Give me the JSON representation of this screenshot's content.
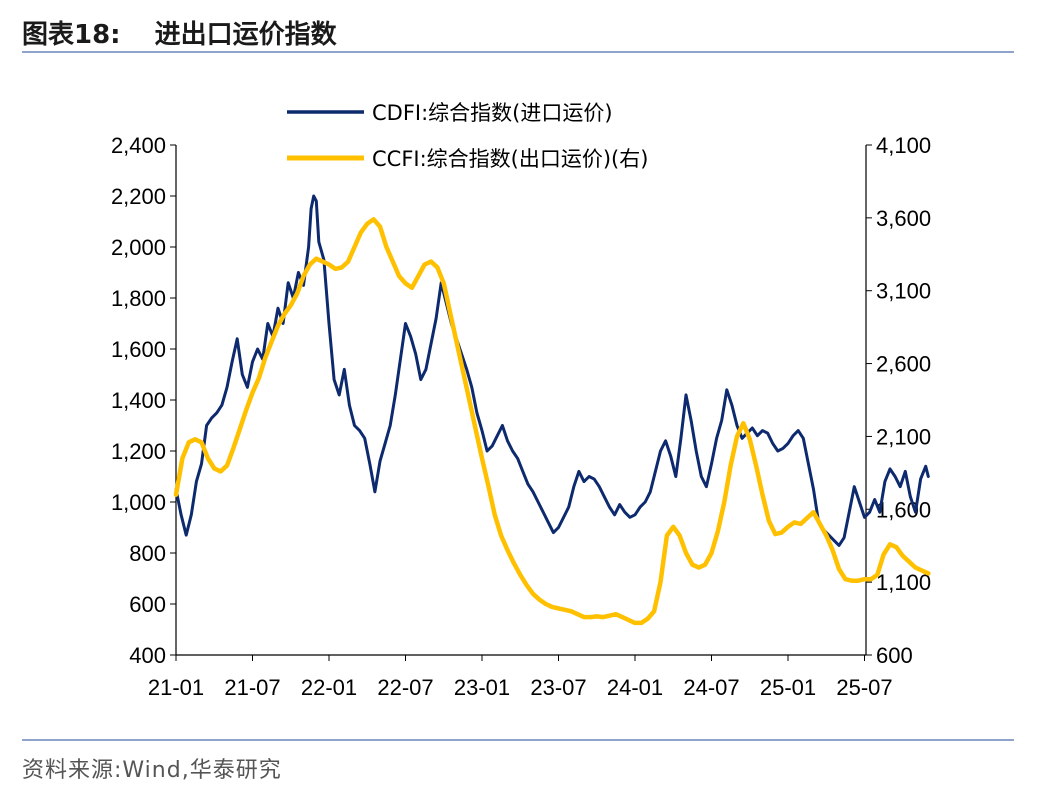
{
  "header": {
    "figure_label": "图表18:",
    "title": "进出口运价指数"
  },
  "footer": {
    "source": "资料来源:Wind,华泰研究"
  },
  "colors": {
    "import": "#0d2a6e",
    "export": "#ffc000",
    "rule": "#8ea4c8"
  },
  "chart_data": {
    "type": "line",
    "title": "进出口运价指数",
    "x_tick_labels": [
      "21-01",
      "21-07",
      "22-01",
      "22-07",
      "23-01",
      "23-07",
      "24-01",
      "24-07",
      "25-01",
      "25-07"
    ],
    "x_range_months": [
      0,
      55
    ],
    "y_left": {
      "min": 400,
      "max": 2400,
      "ticks": [
        400,
        600,
        800,
        1000,
        1200,
        1400,
        1600,
        1800,
        2000,
        2200,
        2400
      ],
      "tick_labels": [
        "400",
        "600",
        "800",
        "1,000",
        "1,200",
        "1,400",
        "1,600",
        "1,800",
        "2,000",
        "2,200",
        "2,400"
      ]
    },
    "y_right": {
      "min": 600,
      "max": 4100,
      "ticks": [
        600,
        1100,
        1600,
        2100,
        2600,
        3100,
        3600,
        4100
      ],
      "tick_labels": [
        "600",
        "1,100",
        "1,600",
        "2,100",
        "2,600",
        "3,100",
        "3,600",
        "4,100"
      ]
    },
    "legend_position": "top-center",
    "series": [
      {
        "name": "CDFI:综合指数(进口运价)",
        "axis": "left",
        "color": "#0d2a6e",
        "points": [
          [
            0,
            1050
          ],
          [
            0.4,
            950
          ],
          [
            0.8,
            870
          ],
          [
            1.2,
            950
          ],
          [
            1.6,
            1080
          ],
          [
            2,
            1150
          ],
          [
            2.4,
            1300
          ],
          [
            2.8,
            1330
          ],
          [
            3.2,
            1350
          ],
          [
            3.6,
            1380
          ],
          [
            4,
            1450
          ],
          [
            4.4,
            1550
          ],
          [
            4.8,
            1640
          ],
          [
            5.2,
            1500
          ],
          [
            5.6,
            1450
          ],
          [
            6,
            1550
          ],
          [
            6.4,
            1600
          ],
          [
            6.8,
            1560
          ],
          [
            7.2,
            1700
          ],
          [
            7.6,
            1650
          ],
          [
            8,
            1760
          ],
          [
            8.4,
            1700
          ],
          [
            8.8,
            1860
          ],
          [
            9.2,
            1800
          ],
          [
            9.6,
            1900
          ],
          [
            10,
            1850
          ],
          [
            10.4,
            2000
          ],
          [
            10.6,
            2150
          ],
          [
            10.8,
            2200
          ],
          [
            11,
            2180
          ],
          [
            11.2,
            2020
          ],
          [
            11.6,
            1950
          ],
          [
            12,
            1700
          ],
          [
            12.4,
            1480
          ],
          [
            12.8,
            1420
          ],
          [
            13.2,
            1520
          ],
          [
            13.6,
            1380
          ],
          [
            14,
            1300
          ],
          [
            14.4,
            1280
          ],
          [
            14.8,
            1250
          ],
          [
            15.2,
            1150
          ],
          [
            15.6,
            1040
          ],
          [
            16,
            1160
          ],
          [
            16.4,
            1230
          ],
          [
            16.8,
            1300
          ],
          [
            17.2,
            1420
          ],
          [
            17.6,
            1560
          ],
          [
            18,
            1700
          ],
          [
            18.4,
            1650
          ],
          [
            18.8,
            1580
          ],
          [
            19.2,
            1480
          ],
          [
            19.6,
            1520
          ],
          [
            20,
            1620
          ],
          [
            20.4,
            1720
          ],
          [
            20.8,
            1860
          ],
          [
            21.2,
            1780
          ],
          [
            21.6,
            1700
          ],
          [
            22,
            1640
          ],
          [
            22.4,
            1580
          ],
          [
            22.8,
            1520
          ],
          [
            23.2,
            1450
          ],
          [
            23.6,
            1350
          ],
          [
            24,
            1280
          ],
          [
            24.4,
            1200
          ],
          [
            24.8,
            1220
          ],
          [
            25.2,
            1260
          ],
          [
            25.6,
            1300
          ],
          [
            26,
            1240
          ],
          [
            26.4,
            1200
          ],
          [
            26.8,
            1170
          ],
          [
            27.2,
            1120
          ],
          [
            27.6,
            1070
          ],
          [
            28,
            1040
          ],
          [
            28.4,
            1000
          ],
          [
            28.8,
            960
          ],
          [
            29.2,
            920
          ],
          [
            29.6,
            880
          ],
          [
            30,
            900
          ],
          [
            30.4,
            940
          ],
          [
            30.8,
            980
          ],
          [
            31.2,
            1060
          ],
          [
            31.6,
            1120
          ],
          [
            32,
            1080
          ],
          [
            32.4,
            1100
          ],
          [
            32.8,
            1090
          ],
          [
            33.2,
            1060
          ],
          [
            33.6,
            1020
          ],
          [
            34,
            980
          ],
          [
            34.4,
            950
          ],
          [
            34.8,
            990
          ],
          [
            35.2,
            960
          ],
          [
            35.6,
            940
          ],
          [
            36,
            950
          ],
          [
            36.4,
            980
          ],
          [
            36.8,
            1000
          ],
          [
            37.2,
            1040
          ],
          [
            37.6,
            1120
          ],
          [
            38,
            1200
          ],
          [
            38.4,
            1240
          ],
          [
            38.8,
            1180
          ],
          [
            39.2,
            1100
          ],
          [
            39.6,
            1250
          ],
          [
            40,
            1420
          ],
          [
            40.4,
            1320
          ],
          [
            40.8,
            1200
          ],
          [
            41.2,
            1100
          ],
          [
            41.6,
            1060
          ],
          [
            42,
            1150
          ],
          [
            42.4,
            1250
          ],
          [
            42.8,
            1320
          ],
          [
            43.2,
            1440
          ],
          [
            43.6,
            1380
          ],
          [
            44,
            1300
          ],
          [
            44.4,
            1250
          ],
          [
            44.8,
            1270
          ],
          [
            45.2,
            1290
          ],
          [
            45.6,
            1260
          ],
          [
            46,
            1280
          ],
          [
            46.4,
            1270
          ],
          [
            46.8,
            1230
          ],
          [
            47.2,
            1200
          ],
          [
            47.6,
            1210
          ],
          [
            48,
            1230
          ],
          [
            48.4,
            1260
          ],
          [
            48.8,
            1280
          ],
          [
            49.2,
            1250
          ],
          [
            49.6,
            1150
          ],
          [
            50,
            1050
          ],
          [
            50.4,
            920
          ],
          [
            50.8,
            890
          ],
          [
            51.2,
            870
          ],
          [
            51.6,
            850
          ],
          [
            52,
            830
          ],
          [
            52.4,
            860
          ],
          [
            52.8,
            960
          ],
          [
            53.2,
            1060
          ],
          [
            53.6,
            1000
          ],
          [
            54,
            940
          ],
          [
            54.4,
            960
          ],
          [
            54.8,
            1010
          ],
          [
            55.2,
            960
          ],
          [
            55.6,
            1080
          ],
          [
            56,
            1130
          ],
          [
            56.4,
            1100
          ],
          [
            56.8,
            1060
          ],
          [
            57.2,
            1120
          ],
          [
            57.6,
            1020
          ],
          [
            58,
            960
          ],
          [
            58.4,
            1090
          ],
          [
            58.8,
            1140
          ],
          [
            59,
            1100
          ]
        ]
      },
      {
        "name": "CCFI:综合指数(出口运价)(右)",
        "axis": "right",
        "color": "#ffc000",
        "points": [
          [
            0,
            1700
          ],
          [
            0.5,
            1950
          ],
          [
            1,
            2060
          ],
          [
            1.5,
            2080
          ],
          [
            2,
            2060
          ],
          [
            2.5,
            1950
          ],
          [
            3,
            1880
          ],
          [
            3.5,
            1860
          ],
          [
            4,
            1900
          ],
          [
            4.5,
            2020
          ],
          [
            5,
            2150
          ],
          [
            5.5,
            2280
          ],
          [
            6,
            2400
          ],
          [
            6.5,
            2500
          ],
          [
            7,
            2640
          ],
          [
            7.5,
            2750
          ],
          [
            8,
            2860
          ],
          [
            8.5,
            2940
          ],
          [
            9,
            3000
          ],
          [
            9.5,
            3080
          ],
          [
            10,
            3200
          ],
          [
            10.5,
            3280
          ],
          [
            11,
            3320
          ],
          [
            11.5,
            3300
          ],
          [
            12,
            3280
          ],
          [
            12.5,
            3250
          ],
          [
            13,
            3260
          ],
          [
            13.5,
            3300
          ],
          [
            14,
            3400
          ],
          [
            14.5,
            3500
          ],
          [
            15,
            3560
          ],
          [
            15.5,
            3590
          ],
          [
            16,
            3540
          ],
          [
            16.5,
            3400
          ],
          [
            17,
            3300
          ],
          [
            17.5,
            3200
          ],
          [
            18,
            3150
          ],
          [
            18.5,
            3120
          ],
          [
            19,
            3200
          ],
          [
            19.5,
            3280
          ],
          [
            20,
            3300
          ],
          [
            20.5,
            3260
          ],
          [
            21,
            3150
          ],
          [
            21.5,
            2950
          ],
          [
            22,
            2750
          ],
          [
            22.5,
            2550
          ],
          [
            23,
            2350
          ],
          [
            23.5,
            2150
          ],
          [
            24,
            1950
          ],
          [
            24.5,
            1760
          ],
          [
            25,
            1560
          ],
          [
            25.5,
            1420
          ],
          [
            26,
            1320
          ],
          [
            26.5,
            1230
          ],
          [
            27,
            1150
          ],
          [
            27.5,
            1080
          ],
          [
            28,
            1020
          ],
          [
            28.5,
            980
          ],
          [
            29,
            950
          ],
          [
            29.5,
            930
          ],
          [
            30,
            920
          ],
          [
            30.5,
            910
          ],
          [
            31,
            900
          ],
          [
            31.5,
            880
          ],
          [
            32,
            860
          ],
          [
            32.5,
            860
          ],
          [
            33,
            865
          ],
          [
            33.5,
            860
          ],
          [
            34,
            870
          ],
          [
            34.5,
            880
          ],
          [
            35,
            860
          ],
          [
            35.5,
            840
          ],
          [
            36,
            820
          ],
          [
            36.5,
            820
          ],
          [
            37,
            850
          ],
          [
            37.5,
            900
          ],
          [
            38,
            1100
          ],
          [
            38.5,
            1420
          ],
          [
            39,
            1480
          ],
          [
            39.5,
            1420
          ],
          [
            40,
            1300
          ],
          [
            40.5,
            1220
          ],
          [
            41,
            1200
          ],
          [
            41.5,
            1220
          ],
          [
            42,
            1300
          ],
          [
            42.5,
            1450
          ],
          [
            43,
            1650
          ],
          [
            43.5,
            1900
          ],
          [
            44,
            2100
          ],
          [
            44.5,
            2190
          ],
          [
            45,
            2080
          ],
          [
            45.5,
            1900
          ],
          [
            46,
            1700
          ],
          [
            46.5,
            1520
          ],
          [
            47,
            1430
          ],
          [
            47.5,
            1440
          ],
          [
            48,
            1480
          ],
          [
            48.5,
            1510
          ],
          [
            49,
            1500
          ],
          [
            49.5,
            1540
          ],
          [
            50,
            1580
          ],
          [
            50.5,
            1500
          ],
          [
            51,
            1420
          ],
          [
            51.5,
            1320
          ],
          [
            52,
            1190
          ],
          [
            52.5,
            1120
          ],
          [
            53,
            1110
          ],
          [
            53.5,
            1110
          ],
          [
            54,
            1120
          ],
          [
            54.5,
            1120
          ],
          [
            55,
            1150
          ],
          [
            55.5,
            1290
          ],
          [
            56,
            1360
          ],
          [
            56.5,
            1340
          ],
          [
            57,
            1280
          ],
          [
            57.5,
            1240
          ],
          [
            58,
            1200
          ],
          [
            58.5,
            1180
          ],
          [
            59,
            1160
          ]
        ]
      }
    ]
  }
}
